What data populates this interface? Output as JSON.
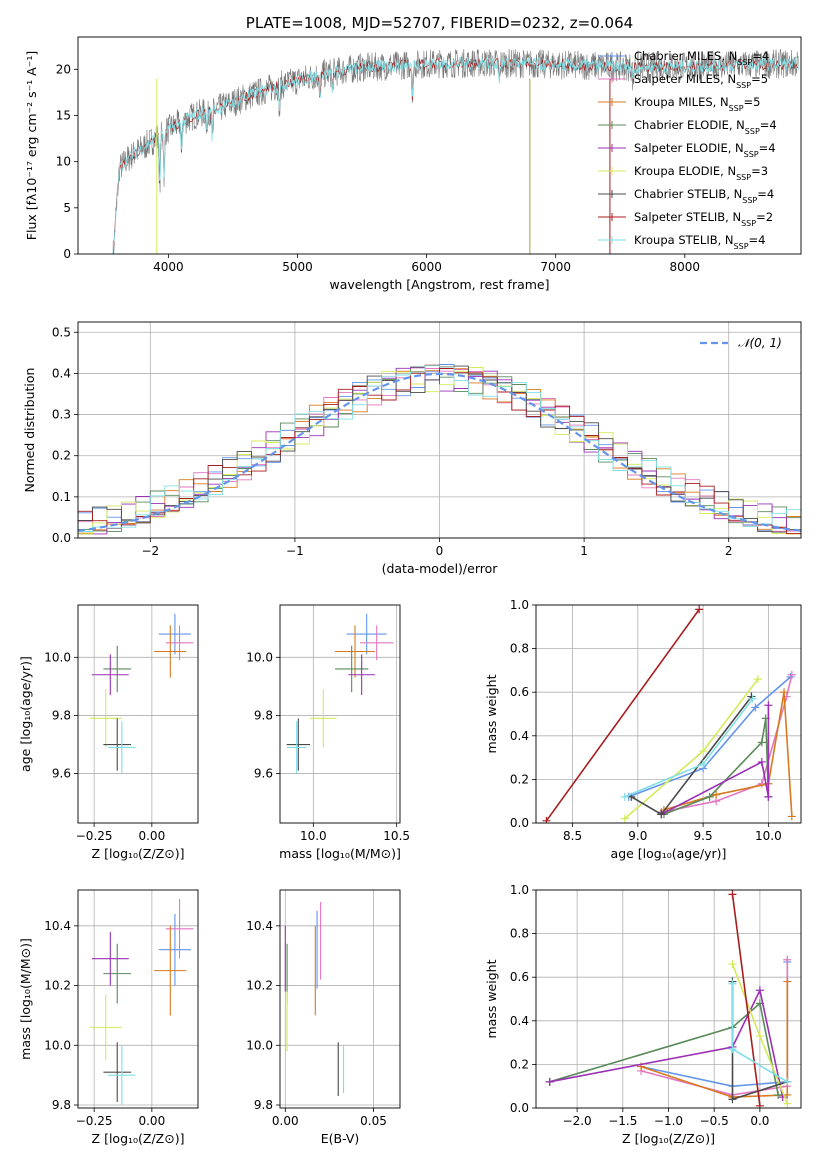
{
  "figure_title": "PLATE=1008, MJD=52707, FIBERID=0232, z=0.064",
  "colors": {
    "Chabrier MILES": "#6495ed",
    "Salpeter MILES": "#e377c2",
    "Kroupa MILES": "#d97a1e",
    "Chabrier ELODIE": "#5a8a5a",
    "Salpeter ELODIE": "#9b30b5",
    "Kroupa ELODIE": "#d4ea5a",
    "Chabrier STELIB": "#4a4a4a",
    "Salpeter STELIB": "#a81e1e",
    "Kroupa STELIB": "#80dfe6",
    "normal": "#6495ed"
  },
  "chart_data": [
    {
      "id": "spectrum",
      "type": "line",
      "title": "PLATE=1008, MJD=52707, FIBERID=0232, z=0.064",
      "xlabel": "wavelength [Angstrom, rest frame]",
      "ylabel": "Flux [fλ10⁻¹⁷ erg cm⁻² s⁻¹ A⁻¹]",
      "xlim": [
        3300,
        8900
      ],
      "ylim": [
        0,
        23.5
      ],
      "xticks": [
        4000,
        5000,
        6000,
        7000,
        8000
      ],
      "yticks": [
        0,
        5,
        10,
        15,
        20
      ],
      "legend_position": "top-right",
      "continuum": {
        "x": [
          3570,
          3700,
          3800,
          3900,
          4000,
          4200,
          4400,
          4600,
          4800,
          5000,
          5200,
          5500,
          6000,
          6500,
          7000,
          7500,
          8000,
          8500,
          8800
        ],
        "y": [
          8.5,
          10.5,
          11.5,
          12.5,
          13.5,
          15.0,
          15.8,
          17.0,
          18.0,
          18.8,
          19.5,
          20.2,
          20.6,
          20.7,
          20.5,
          20.3,
          20.3,
          20.5,
          20.6
        ]
      },
      "legend": [
        {
          "label": "Chabrier MILES, Nₛₛₚ=4",
          "base": "Chabrier MILES, N",
          "sub": "SSP",
          "value": "=4",
          "color_key": "Chabrier MILES"
        },
        {
          "label": "Salpeter MILES, Nₛₛₚ=5",
          "base": "Salpeter MILES, N",
          "sub": "SSP",
          "value": "=5",
          "color_key": "Salpeter MILES"
        },
        {
          "label": "Kroupa MILES, Nₛₛₚ=5",
          "base": "Kroupa MILES, N",
          "sub": "SSP",
          "value": "=5",
          "color_key": "Kroupa MILES"
        },
        {
          "label": "Chabrier ELODIE, Nₛₛₚ=4",
          "base": "Chabrier ELODIE, N",
          "sub": "SSP",
          "value": "=4",
          "color_key": "Chabrier ELODIE"
        },
        {
          "label": "Salpeter ELODIE, Nₛₛₚ=4",
          "base": "Salpeter ELODIE, N",
          "sub": "SSP",
          "value": "=4",
          "color_key": "Salpeter ELODIE"
        },
        {
          "label": "Kroupa ELODIE, Nₛₛₚ=3",
          "base": "Kroupa ELODIE, N",
          "sub": "SSP",
          "value": "=3",
          "color_key": "Kroupa ELODIE"
        },
        {
          "label": "Chabrier STELIB, Nₛₛₚ=4",
          "base": "Chabrier STELIB, N",
          "sub": "SSP",
          "value": "=4",
          "color_key": "Chabrier STELIB"
        },
        {
          "label": "Salpeter STELIB, Nₛₛₚ=2",
          "base": "Salpeter STELIB, N",
          "sub": "SSP",
          "value": "=2",
          "color_key": "Salpeter STELIB"
        },
        {
          "label": "Kroupa STELIB, Nₛₛₚ=4",
          "base": "Kroupa STELIB, N",
          "sub": "SSP",
          "value": "=4",
          "color_key": "Kroupa STELIB"
        }
      ]
    },
    {
      "id": "residuals",
      "type": "line",
      "xlabel": "(data-model)/error",
      "ylabel": "Normed distribution",
      "xlim": [
        -2.5,
        2.5
      ],
      "ylim": [
        0,
        0.525
      ],
      "xticks": [
        -2,
        -1,
        0,
        1,
        2
      ],
      "yticks": [
        0.0,
        0.1,
        0.2,
        0.3,
        0.4,
        0.5
      ],
      "grid": true,
      "legend_position": "top-right",
      "normal_legend": "𝒩(0, 1)",
      "normal_color_key": "normal",
      "bin_width": 0.1,
      "histograms": [
        {
          "color_key": "Chabrier MILES",
          "phase": 0.0
        },
        {
          "color_key": "Salpeter MILES",
          "phase": 1.3
        },
        {
          "color_key": "Kroupa MILES",
          "phase": 2.1
        },
        {
          "color_key": "Chabrier ELODIE",
          "phase": 3.4
        },
        {
          "color_key": "Salpeter ELODIE",
          "phase": 4.2
        },
        {
          "color_key": "Kroupa ELODIE",
          "phase": 5.0
        },
        {
          "color_key": "Chabrier STELIB",
          "phase": 5.9
        },
        {
          "color_key": "Salpeter STELIB",
          "phase": 0.7
        },
        {
          "color_key": "Kroupa STELIB",
          "phase": 2.8
        }
      ]
    },
    {
      "id": "z-age",
      "type": "scatter",
      "xlabel": "Z [log₁₀(Z/Z⊙)]",
      "ylabel": "age  [log₁₀(age/yr)]",
      "xlim": [
        -0.32,
        0.2
      ],
      "ylim": [
        9.43,
        10.18
      ],
      "xticks": [
        -0.25,
        0.0
      ],
      "yticks": [
        9.6,
        9.8,
        10.0
      ],
      "xtick_labels": [
        "−0.25",
        "0.00"
      ],
      "grid": true,
      "points": [
        {
          "color_key": "Chabrier MILES",
          "x": 0.1,
          "y": 10.08,
          "xerr": 0.07,
          "yerr": 0.07
        },
        {
          "color_key": "Salpeter MILES",
          "x": 0.12,
          "y": 10.05,
          "xerr": 0.06,
          "yerr": 0.06
        },
        {
          "color_key": "Kroupa MILES",
          "x": 0.08,
          "y": 10.02,
          "xerr": 0.07,
          "yerr": 0.09
        },
        {
          "color_key": "Chabrier ELODIE",
          "x": -0.15,
          "y": 9.96,
          "xerr": 0.06,
          "yerr": 0.08
        },
        {
          "color_key": "Salpeter ELODIE",
          "x": -0.18,
          "y": 9.94,
          "xerr": 0.08,
          "yerr": 0.07
        },
        {
          "color_key": "Kroupa ELODIE",
          "x": -0.2,
          "y": 9.79,
          "xerr": 0.07,
          "yerr": 0.1
        },
        {
          "color_key": "Chabrier STELIB",
          "x": -0.15,
          "y": 9.7,
          "xerr": 0.06,
          "yerr": 0.09
        },
        {
          "color_key": "Kroupa STELIB",
          "x": -0.13,
          "y": 9.69,
          "xerr": 0.06,
          "yerr": 0.09
        }
      ]
    },
    {
      "id": "mass-age",
      "type": "scatter",
      "xlabel": "mass [log₁₀(M/M⊙)]",
      "ylabel": "",
      "xlim": [
        9.8,
        10.52
      ],
      "ylim": [
        9.43,
        10.18
      ],
      "xticks": [
        10.0,
        10.5
      ],
      "yticks": [
        9.6,
        9.8,
        10.0
      ],
      "grid": true,
      "points": [
        {
          "color_key": "Chabrier MILES",
          "x": 10.32,
          "y": 10.08,
          "xerr": 0.12,
          "yerr": 0.07
        },
        {
          "color_key": "Salpeter MILES",
          "x": 10.38,
          "y": 10.05,
          "xerr": 0.1,
          "yerr": 0.06
        },
        {
          "color_key": "Kroupa MILES",
          "x": 10.25,
          "y": 10.02,
          "xerr": 0.12,
          "yerr": 0.09
        },
        {
          "color_key": "Chabrier ELODIE",
          "x": 10.23,
          "y": 9.96,
          "xerr": 0.1,
          "yerr": 0.08
        },
        {
          "color_key": "Salpeter ELODIE",
          "x": 10.29,
          "y": 9.94,
          "xerr": 0.08,
          "yerr": 0.07
        },
        {
          "color_key": "Kroupa ELODIE",
          "x": 10.06,
          "y": 9.79,
          "xerr": 0.08,
          "yerr": 0.1
        },
        {
          "color_key": "Chabrier STELIB",
          "x": 9.91,
          "y": 9.7,
          "xerr": 0.07,
          "yerr": 0.09
        },
        {
          "color_key": "Kroupa STELIB",
          "x": 9.9,
          "y": 9.69,
          "xerr": 0.06,
          "yerr": 0.09
        }
      ]
    },
    {
      "id": "age-weight",
      "type": "line",
      "xlabel": "age  [log₁₀(age/yr)]",
      "ylabel": "mass weight",
      "xlim": [
        8.22,
        10.25
      ],
      "ylim": [
        0,
        1.0
      ],
      "xticks": [
        8.5,
        9.0,
        9.5,
        10.0
      ],
      "yticks": [
        0.0,
        0.2,
        0.4,
        0.6,
        0.8,
        1.0
      ],
      "grid": true,
      "series": [
        {
          "color_key": "Chabrier MILES",
          "x": [
            8.93,
            9.5,
            9.9,
            10.17
          ],
          "y": [
            0.12,
            0.25,
            0.53,
            0.67
          ]
        },
        {
          "color_key": "Salpeter MILES",
          "x": [
            9.18,
            9.6,
            9.95,
            10.14,
            10.18
          ],
          "y": [
            0.05,
            0.1,
            0.18,
            0.58,
            0.68
          ]
        },
        {
          "color_key": "Kroupa MILES",
          "x": [
            9.2,
            9.6,
            10.0,
            10.12,
            10.18
          ],
          "y": [
            0.06,
            0.13,
            0.18,
            0.6,
            0.03
          ]
        },
        {
          "color_key": "Chabrier ELODIE",
          "x": [
            9.2,
            9.55,
            9.95,
            9.98,
            10.0
          ],
          "y": [
            0.04,
            0.12,
            0.37,
            0.48,
            0.12
          ]
        },
        {
          "color_key": "Salpeter ELODIE",
          "x": [
            9.18,
            9.95,
            10.0,
            10.0
          ],
          "y": [
            0.04,
            0.28,
            0.12,
            0.54
          ]
        },
        {
          "color_key": "Kroupa ELODIE",
          "x": [
            8.9,
            9.5,
            9.92
          ],
          "y": [
            0.02,
            0.33,
            0.66
          ]
        },
        {
          "color_key": "Chabrier STELIB",
          "x": [
            8.95,
            9.18,
            9.87
          ],
          "y": [
            0.12,
            0.04,
            0.58
          ]
        },
        {
          "color_key": "Salpeter STELIB",
          "x": [
            8.3,
            9.47
          ],
          "y": [
            0.01,
            0.98
          ]
        },
        {
          "color_key": "Kroupa STELIB",
          "x": [
            8.9,
            9.5,
            9.88
          ],
          "y": [
            0.12,
            0.27,
            0.57
          ]
        }
      ]
    },
    {
      "id": "z-mass",
      "type": "scatter",
      "xlabel": "Z [log₁₀(Z/Z⊙)]",
      "ylabel": "mass [log₁₀(M/M⊙)]",
      "xlim": [
        -0.32,
        0.2
      ],
      "ylim": [
        9.79,
        10.52
      ],
      "xticks": [
        -0.25,
        0.0
      ],
      "yticks": [
        9.8,
        10.0,
        10.2,
        10.4
      ],
      "xtick_labels": [
        "−0.25",
        "0.00"
      ],
      "grid": true,
      "points": [
        {
          "color_key": "Chabrier MILES",
          "x": 0.1,
          "y": 10.32,
          "xerr": 0.07,
          "yerr": 0.12
        },
        {
          "color_key": "Salpeter MILES",
          "x": 0.12,
          "y": 10.39,
          "xerr": 0.06,
          "yerr": 0.1
        },
        {
          "color_key": "Kroupa MILES",
          "x": 0.08,
          "y": 10.25,
          "xerr": 0.07,
          "yerr": 0.15
        },
        {
          "color_key": "Chabrier ELODIE",
          "x": -0.15,
          "y": 10.24,
          "xerr": 0.06,
          "yerr": 0.1
        },
        {
          "color_key": "Salpeter ELODIE",
          "x": -0.18,
          "y": 10.29,
          "xerr": 0.08,
          "yerr": 0.09
        },
        {
          "color_key": "Kroupa ELODIE",
          "x": -0.2,
          "y": 10.06,
          "xerr": 0.07,
          "yerr": 0.11
        },
        {
          "color_key": "Chabrier STELIB",
          "x": -0.15,
          "y": 9.91,
          "xerr": 0.06,
          "yerr": 0.1
        },
        {
          "color_key": "Kroupa STELIB",
          "x": -0.13,
          "y": 9.9,
          "xerr": 0.06,
          "yerr": 0.1
        }
      ]
    },
    {
      "id": "ebv-mass",
      "type": "scatter",
      "xlabel": "E(B-V)",
      "ylabel": "",
      "xlim": [
        -0.003,
        0.065
      ],
      "ylim": [
        9.79,
        10.52
      ],
      "xticks": [
        0.0,
        0.05
      ],
      "yticks": [
        9.8,
        10.0,
        10.2,
        10.4
      ],
      "xtick_labels": [
        "0.00",
        "0.05"
      ],
      "grid": true,
      "points": [
        {
          "color_key": "Chabrier MILES",
          "x": 0.018,
          "y": 10.32,
          "xerr": 0,
          "yerr": 0.13
        },
        {
          "color_key": "Salpeter MILES",
          "x": 0.02,
          "y": 10.35,
          "xerr": 0,
          "yerr": 0.13
        },
        {
          "color_key": "Kroupa MILES",
          "x": 0.017,
          "y": 10.25,
          "xerr": 0,
          "yerr": 0.15
        },
        {
          "color_key": "Chabrier ELODIE",
          "x": 0.001,
          "y": 10.24,
          "xerr": 0,
          "yerr": 0.1
        },
        {
          "color_key": "Salpeter ELODIE",
          "x": 0.0,
          "y": 10.29,
          "xerr": 0,
          "yerr": 0.11
        },
        {
          "color_key": "Kroupa ELODIE",
          "x": 0.001,
          "y": 10.08,
          "xerr": 0,
          "yerr": 0.1
        },
        {
          "color_key": "Chabrier STELIB",
          "x": 0.03,
          "y": 9.92,
          "xerr": 0,
          "yerr": 0.09
        },
        {
          "color_key": "Kroupa STELIB",
          "x": 0.033,
          "y": 9.92,
          "xerr": 0,
          "yerr": 0.08
        }
      ]
    },
    {
      "id": "z-weight",
      "type": "line",
      "xlabel": "Z [log₁₀(Z/Z⊙)]",
      "ylabel": "mass weight",
      "xlim": [
        -2.45,
        0.45
      ],
      "ylim": [
        0,
        1.0
      ],
      "xticks": [
        -2.0,
        -1.5,
        -1.0,
        -0.5,
        0.0
      ],
      "yticks": [
        0.0,
        0.2,
        0.4,
        0.6,
        0.8,
        1.0
      ],
      "xtick_labels": [
        "−2.0",
        "−1.5",
        "−1.0",
        "−0.5",
        "0.0"
      ],
      "grid": true,
      "series": [
        {
          "color_key": "Chabrier MILES",
          "x": [
            -1.3,
            -0.3,
            0.3,
            0.3
          ],
          "y": [
            0.19,
            0.1,
            0.12,
            0.67
          ]
        },
        {
          "color_key": "Salpeter MILES",
          "x": [
            -1.3,
            -0.3,
            0.3,
            0.3
          ],
          "y": [
            0.17,
            0.06,
            0.1,
            0.68
          ]
        },
        {
          "color_key": "Kroupa MILES",
          "x": [
            -1.3,
            -0.3,
            0.3,
            0.3
          ],
          "y": [
            0.19,
            0.05,
            0.06,
            0.58
          ]
        },
        {
          "color_key": "Chabrier ELODIE",
          "x": [
            -2.3,
            -0.3,
            0.0,
            0.2
          ],
          "y": [
            0.12,
            0.37,
            0.48,
            0.06
          ]
        },
        {
          "color_key": "Salpeter ELODIE",
          "x": [
            -2.3,
            -0.3,
            0.0,
            0.25
          ],
          "y": [
            0.12,
            0.28,
            0.54,
            0.05
          ]
        },
        {
          "color_key": "Kroupa ELODIE",
          "x": [
            -0.3,
            0.0,
            0.3
          ],
          "y": [
            0.66,
            0.33,
            0.02
          ]
        },
        {
          "color_key": "Chabrier STELIB",
          "x": [
            -0.3,
            -0.3,
            0.3
          ],
          "y": [
            0.58,
            0.04,
            0.12
          ]
        },
        {
          "color_key": "Salpeter STELIB",
          "x": [
            -0.3,
            0.0
          ],
          "y": [
            0.98,
            0.01
          ]
        },
        {
          "color_key": "Kroupa STELIB",
          "x": [
            -0.3,
            -0.3,
            0.3
          ],
          "y": [
            0.57,
            0.27,
            0.12
          ]
        }
      ]
    }
  ]
}
